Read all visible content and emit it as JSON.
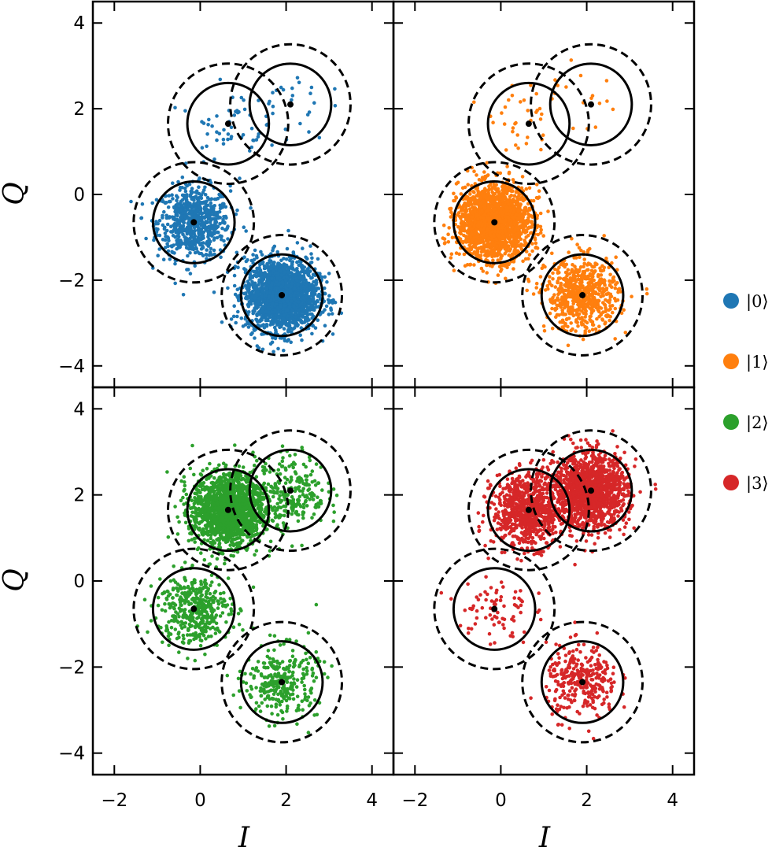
{
  "chart_data": {
    "type": "scatter",
    "xlabel": "I",
    "ylabel": "Q",
    "xlim": [
      -2.5,
      4.5
    ],
    "ylim": [
      -4.5,
      4.5
    ],
    "xticks": [
      -2,
      0,
      2,
      4
    ],
    "yticks": [
      -4,
      -2,
      0,
      2,
      4
    ],
    "grid": false,
    "legend_position": "right",
    "centers": [
      {
        "state": "|0⟩",
        "I": -0.15,
        "Q": -0.65
      },
      {
        "state": "|1⟩",
        "I": 1.9,
        "Q": -2.35
      },
      {
        "state": "|2⟩",
        "I": 0.65,
        "Q": 1.65
      },
      {
        "state": "|3⟩",
        "I": 2.1,
        "Q": 2.1
      }
    ],
    "solid_circle_radius": 0.95,
    "dashed_circle_radius": 1.4,
    "series": [
      {
        "name": "|0⟩",
        "color": "#1f77b4",
        "panel": "top-left",
        "populations": [
          0.27,
          0.7,
          0.02,
          0.01
        ]
      },
      {
        "name": "|1⟩",
        "color": "#ff7f0e",
        "panel": "top-right",
        "populations": [
          0.73,
          0.25,
          0.015,
          0.005
        ]
      },
      {
        "name": "|2⟩",
        "color": "#2ca02c",
        "panel": "bottom-left",
        "populations": [
          0.16,
          0.12,
          0.62,
          0.1
        ]
      },
      {
        "name": "|3⟩",
        "color": "#d62728",
        "panel": "bottom-right",
        "populations": [
          0.03,
          0.12,
          0.33,
          0.52
        ]
      }
    ]
  }
}
